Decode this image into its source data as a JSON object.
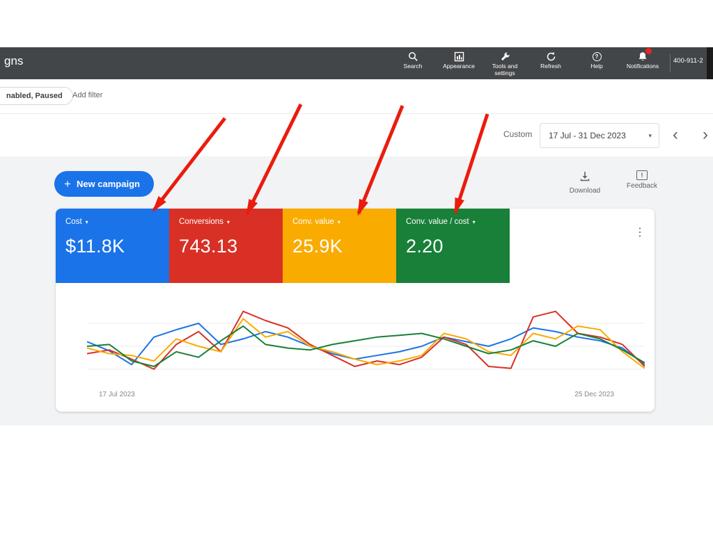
{
  "topbar": {
    "logo_text": "gns",
    "items": [
      {
        "label": "Search",
        "icon": "search-icon"
      },
      {
        "label": "Appearance",
        "icon": "appearance-icon"
      },
      {
        "label": "Tools and settings",
        "icon": "tools-icon"
      },
      {
        "label": "Refresh",
        "icon": "refresh-icon"
      },
      {
        "label": "Help",
        "icon": "help-icon"
      },
      {
        "label": "Notifications",
        "icon": "notifications-icon"
      }
    ],
    "phone": "400-911-2"
  },
  "filterbar": {
    "status_chip": "nabled, Paused",
    "add_filter": "Add filter"
  },
  "daterange": {
    "mode_label": "Custom",
    "value": "17 Jul - 31 Dec 2023"
  },
  "toolbar": {
    "new_campaign": "New campaign",
    "download": "Download",
    "feedback": "Feedback"
  },
  "metrics": [
    {
      "label": "Cost",
      "value": "$11.8K",
      "color": "#1a73e8"
    },
    {
      "label": "Conversions",
      "value": "743.13",
      "color": "#d93025"
    },
    {
      "label": "Conv. value",
      "value": "25.9K",
      "color": "#f9ab00"
    },
    {
      "label": "Conv. value / cost",
      "value": "2.20",
      "color": "#188038"
    }
  ],
  "chart_data": {
    "type": "line",
    "x_start_label": "17 Jul 2023",
    "x_end_label": "25 Dec 2023",
    "ylim": [
      0,
      100
    ],
    "grid_values": [
      25,
      50,
      75
    ],
    "legend": "none",
    "series": [
      {
        "name": "Cost",
        "color": "#1a73e8",
        "values": [
          55,
          45,
          30,
          60,
          68,
          75,
          52,
          58,
          66,
          60,
          50,
          42,
          36,
          40,
          44,
          50,
          60,
          55,
          50,
          58,
          70,
          66,
          60,
          56,
          48,
          30
        ]
      },
      {
        "name": "Conversions",
        "color": "#d93025",
        "values": [
          42,
          46,
          36,
          25,
          52,
          66,
          44,
          88,
          78,
          70,
          52,
          40,
          28,
          34,
          30,
          38,
          60,
          52,
          28,
          26,
          82,
          88,
          64,
          60,
          52,
          28
        ]
      },
      {
        "name": "Conv. value",
        "color": "#f9ab00",
        "values": [
          48,
          42,
          40,
          34,
          58,
          50,
          44,
          80,
          60,
          66,
          50,
          44,
          36,
          30,
          34,
          40,
          64,
          58,
          44,
          40,
          64,
          58,
          72,
          68,
          44,
          26
        ]
      },
      {
        "name": "Conv. value / cost",
        "color": "#188038",
        "values": [
          50,
          52,
          34,
          28,
          44,
          38,
          56,
          72,
          52,
          48,
          46,
          52,
          56,
          60,
          62,
          64,
          58,
          50,
          42,
          46,
          56,
          50,
          64,
          58,
          46,
          32
        ]
      }
    ]
  },
  "annotation": {
    "arrow_color": "#ea1c0d"
  },
  "icons": {
    "caret_down": "▾",
    "chevron_left": "‹",
    "chevron_right": "›",
    "more_vertical": "⋮",
    "plus": "+",
    "question": "?",
    "exclaim": "!"
  }
}
